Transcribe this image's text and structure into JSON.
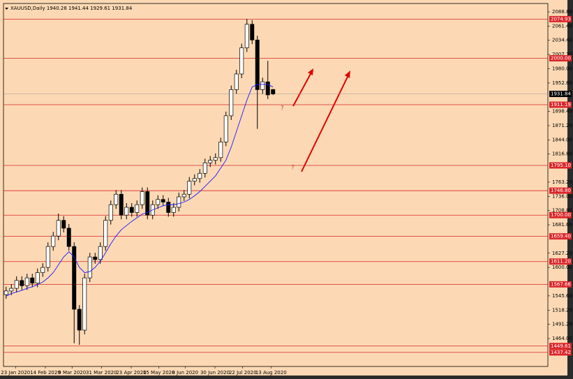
{
  "chart_data": {
    "type": "candlestick",
    "title": "XAUUSD,Daily 1940.28 1941.44 1929.61 1931.84",
    "open": [
      1548,
      1555,
      1560,
      1575,
      1565,
      1580,
      1570,
      1590,
      1600,
      1640,
      1660,
      1690,
      1675,
      1640,
      1520,
      1480,
      1580,
      1620,
      1615,
      1640,
      1690,
      1720,
      1740,
      1700,
      1715,
      1705,
      1720,
      1745,
      1700,
      1720,
      1730,
      1725,
      1705,
      1715,
      1735,
      1740,
      1765,
      1770,
      1780,
      1800,
      1805,
      1810,
      1840,
      1890,
      1940,
      1970,
      2020,
      2065,
      2035,
      1940,
      1955,
      1940.28
    ],
    "high": [
      1563,
      1568,
      1583,
      1583,
      1588,
      1588,
      1598,
      1608,
      1648,
      1668,
      1703,
      1698,
      1683,
      1648,
      1528,
      1588,
      1628,
      1628,
      1648,
      1698,
      1728,
      1748,
      1748,
      1723,
      1723,
      1728,
      1753,
      1753,
      1728,
      1738,
      1738,
      1733,
      1723,
      1743,
      1748,
      1773,
      1778,
      1788,
      1808,
      1813,
      1818,
      1848,
      1898,
      1948,
      1978,
      2028,
      2075,
      2073,
      2043,
      1963,
      1995,
      1941.44
    ],
    "low": [
      1540,
      1547,
      1552,
      1557,
      1557,
      1562,
      1562,
      1582,
      1592,
      1632,
      1652,
      1667,
      1632,
      1455,
      1452,
      1472,
      1572,
      1607,
      1607,
      1632,
      1682,
      1712,
      1692,
      1692,
      1697,
      1697,
      1712,
      1692,
      1692,
      1712,
      1717,
      1697,
      1697,
      1707,
      1727,
      1732,
      1757,
      1762,
      1772,
      1792,
      1797,
      1802,
      1832,
      1882,
      1932,
      1962,
      2012,
      2027,
      1865,
      1932,
      1922,
      1929.61
    ],
    "close": [
      1555,
      1560,
      1575,
      1565,
      1580,
      1570,
      1590,
      1600,
      1640,
      1660,
      1690,
      1675,
      1640,
      1520,
      1480,
      1580,
      1620,
      1615,
      1640,
      1690,
      1720,
      1740,
      1700,
      1715,
      1705,
      1720,
      1745,
      1700,
      1720,
      1730,
      1725,
      1705,
      1715,
      1735,
      1740,
      1765,
      1770,
      1780,
      1800,
      1805,
      1810,
      1840,
      1890,
      1940,
      1970,
      2020,
      2065,
      2035,
      1940,
      1955,
      1930,
      1931.84
    ],
    "ma": {
      "color": "#1a1aff",
      "values": [
        1545,
        1550,
        1553,
        1556,
        1560,
        1563,
        1567,
        1572,
        1580,
        1590,
        1605,
        1620,
        1630,
        1620,
        1600,
        1590,
        1592,
        1600,
        1612,
        1628,
        1645,
        1660,
        1672,
        1680,
        1688,
        1695,
        1702,
        1705,
        1710,
        1714,
        1718,
        1720,
        1720,
        1722,
        1725,
        1730,
        1737,
        1745,
        1755,
        1765,
        1775,
        1790,
        1805,
        1830,
        1860,
        1890,
        1920,
        1945,
        1950,
        1950,
        1950,
        1945
      ]
    },
    "xlim": [
      -0.5,
      103.5
    ],
    "xticks": [
      {
        "value": 1.8,
        "label": "23 Jan 2020"
      },
      {
        "value": 7.5,
        "label": "14 Feb 2020"
      },
      {
        "value": 12.6,
        "label": "9 Mar 2020"
      },
      {
        "value": 18.2,
        "label": "31 Mar 2020"
      },
      {
        "value": 23.9,
        "label": "23 Apr 2020"
      },
      {
        "value": 29.2,
        "label": "15 May 2020"
      },
      {
        "value": 34.2,
        "label": "8 Jun 2020"
      },
      {
        "value": 39.9,
        "label": "30 Jun 2020"
      },
      {
        "value": 45.2,
        "label": "22 Jul 2020"
      },
      {
        "value": 50.6,
        "label": "13 Aug 2020"
      }
    ],
    "ylim": [
      1410.6,
      2104.8
    ],
    "yticks": [
      {
        "value": 2088.8,
        "label": "2088.80"
      },
      {
        "value": 2061.4,
        "label": "2061.40"
      },
      {
        "value": 2034.4,
        "label": "2034.40"
      },
      {
        "value": 2007.3,
        "label": "2007.30"
      },
      {
        "value": 1980,
        "label": "1980.00"
      },
      {
        "value": 1952.8,
        "label": "1952.80"
      },
      {
        "value": 1898.4,
        "label": "1898.40"
      },
      {
        "value": 1871.2,
        "label": "1871.20"
      },
      {
        "value": 1844,
        "label": "1844.00"
      },
      {
        "value": 1816.8,
        "label": "1816.80"
      },
      {
        "value": 1763.2,
        "label": "1763.20"
      },
      {
        "value": 1736,
        "label": "1736.00"
      },
      {
        "value": 1708.8,
        "label": "1708.80"
      },
      {
        "value": 1681.6,
        "label": "1681.60"
      },
      {
        "value": 1627.2,
        "label": "1627.20"
      },
      {
        "value": 1600,
        "label": "1600.00"
      },
      {
        "value": 1545.6,
        "label": "1545.60"
      },
      {
        "value": 1518.2,
        "label": "1518.20"
      },
      {
        "value": 1491.2,
        "label": "1491.20"
      },
      {
        "value": 1464,
        "label": "1464.00"
      }
    ],
    "levels": [
      {
        "value": 2074.93,
        "label": "2074.93"
      },
      {
        "value": 2000,
        "label": "2000.00"
      },
      {
        "value": 1911.19,
        "label": "1911.19"
      },
      {
        "value": 1795.1,
        "label": "1795.10"
      },
      {
        "value": 1746.8,
        "label": "1746.80"
      },
      {
        "value": 1700,
        "label": "1700.00"
      },
      {
        "value": 1659.4,
        "label": "1659.40"
      },
      {
        "value": 1611.2,
        "label": "1611.20"
      },
      {
        "value": 1567.66,
        "label": "1567.66"
      },
      {
        "value": 1449.61,
        "label": "1449.61"
      },
      {
        "value": 1437.42,
        "label": "1437.42"
      }
    ],
    "level_color": "#d9262a",
    "last_price": 1931.84,
    "annotations": [
      "?",
      "?"
    ]
  }
}
